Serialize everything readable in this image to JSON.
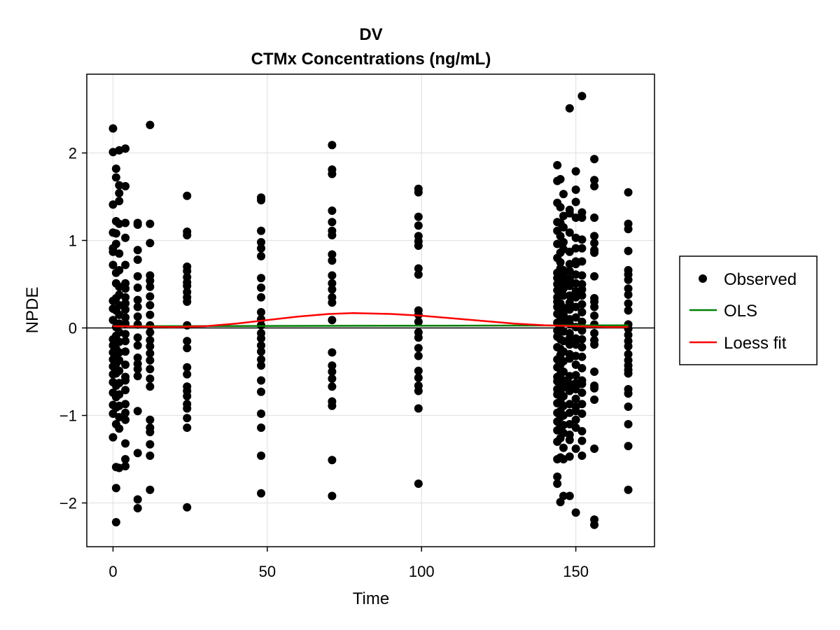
{
  "chart_data": {
    "type": "scatter",
    "title": "DV",
    "subtitle": "CTMx Concentrations (ng/mL)",
    "xlabel": "Time",
    "ylabel": "NPDE",
    "xlim": [
      -8.5,
      175.5
    ],
    "ylim": [
      -2.5,
      2.9
    ],
    "x_ticks": [
      0,
      50,
      100,
      150
    ],
    "y_ticks": [
      -2,
      -1,
      0,
      1,
      2
    ],
    "y_tick_labels": [
      "−2",
      "−1",
      "0",
      "1",
      "2"
    ],
    "grid": true,
    "legend_position": "right",
    "reference_line_y": 0,
    "colors": {
      "observed": "#000000",
      "ols": "#008000",
      "loess": "#ff0000"
    },
    "series": [
      {
        "name": "Observed",
        "kind": "points",
        "groups": [
          {
            "x": 0,
            "y": [
              2.28,
              2.01,
              1.41,
              1.09,
              0.91,
              0.87,
              0.72,
              0.31,
              0.22,
              0.09,
              -0.13,
              -0.2,
              -0.28,
              -0.36,
              -0.44,
              -0.53,
              -0.62,
              -0.74,
              -0.88,
              -0.98,
              -1.25
            ]
          },
          {
            "x": 1,
            "y": [
              1.82,
              1.72,
              1.22,
              1.08,
              0.96,
              0.63,
              0.51,
              0.34,
              0.2,
              0.01,
              -0.09,
              -0.24,
              -0.3,
              -0.41,
              -0.52,
              -0.66,
              -0.79,
              -0.91,
              -1.1,
              -1.59,
              -1.83,
              -2.22
            ]
          },
          {
            "x": 2,
            "y": [
              2.03,
              1.63,
              1.54,
              1.45,
              1.19,
              0.85,
              0.66,
              0.47,
              0.38,
              0.26,
              0.15,
              0.05,
              -0.05,
              -0.16,
              -0.28,
              -0.37,
              -0.49,
              -0.63,
              -0.76,
              -0.89,
              -1.02,
              -1.15,
              -1.6
            ]
          },
          {
            "x": 4,
            "y": [
              2.05,
              1.62,
              1.2,
              1.03,
              0.72,
              0.51,
              0.45,
              0.35,
              0.28,
              0.21,
              0.12,
              0.05,
              -0.07,
              -0.15,
              -0.27,
              -0.42,
              -0.56,
              -0.6,
              -0.71,
              -0.87,
              -0.97,
              -1.05,
              -1.32,
              -1.5,
              -1.58
            ]
          },
          {
            "x": 8,
            "y": [
              1.2,
              1.18,
              0.89,
              0.78,
              0.59,
              0.46,
              0.32,
              0.24,
              0.13,
              0.04,
              -0.11,
              -0.2,
              -0.34,
              -0.41,
              -0.47,
              -0.55,
              -0.95,
              -1.43,
              -1.96,
              -2.06
            ]
          },
          {
            "x": 12,
            "y": [
              2.32,
              1.19,
              0.97,
              0.6,
              0.54,
              0.47,
              0.36,
              0.26,
              0.15,
              0.03,
              -0.05,
              -0.14,
              -0.21,
              -0.29,
              -0.37,
              -0.47,
              -0.58,
              -0.67,
              -1.05,
              -1.14,
              -1.19,
              -1.33,
              -1.46,
              -1.85
            ]
          },
          {
            "x": 24,
            "y": [
              1.51,
              1.1,
              1.06,
              0.7,
              0.65,
              0.58,
              0.52,
              0.48,
              0.41,
              0.35,
              0.3,
              0.03,
              -0.15,
              -0.23,
              -0.45,
              -0.53,
              -0.67,
              -0.72,
              -0.78,
              -0.87,
              -0.92,
              -1.03,
              -1.14,
              -2.05
            ]
          },
          {
            "x": 48,
            "y": [
              1.49,
              1.46,
              1.11,
              0.98,
              0.91,
              0.82,
              0.57,
              0.46,
              0.35,
              0.18,
              0.1,
              0.03,
              -0.06,
              -0.12,
              -0.2,
              -0.27,
              -0.36,
              -0.43,
              -0.6,
              -0.73,
              -0.98,
              -1.14,
              -1.46,
              -1.89
            ]
          },
          {
            "x": 71,
            "y": [
              2.09,
              1.81,
              1.76,
              1.34,
              1.21,
              1.11,
              1.06,
              0.84,
              0.77,
              0.6,
              0.51,
              0.44,
              0.35,
              0.29,
              0.09,
              -0.28,
              -0.43,
              -0.5,
              -0.58,
              -0.67,
              -0.84,
              -0.89,
              -1.51,
              -1.92
            ]
          },
          {
            "x": 99,
            "y": [
              1.59,
              1.55,
              1.27,
              1.17,
              1.05,
              0.99,
              0.94,
              0.68,
              0.61,
              0.2,
              0.15,
              0.07,
              -0.05,
              -0.11,
              -0.23,
              -0.32,
              -0.49,
              -0.57,
              -0.66,
              -0.72,
              -0.92,
              -1.78
            ]
          },
          {
            "x": 144,
            "y": [
              1.86,
              1.68,
              1.43,
              1.21,
              1.11,
              0.96,
              0.8,
              0.63,
              0.57,
              0.5,
              0.43,
              0.35,
              0.3,
              0.24,
              0.16,
              0.06,
              -0.03,
              -0.1,
              -0.22,
              -0.36,
              -0.45,
              -0.56,
              -0.61,
              -0.7,
              -0.76,
              -0.86,
              -0.97,
              -1.07,
              -1.17,
              -1.3,
              -1.5,
              -1.7,
              -1.78
            ]
          },
          {
            "x": 145,
            "y": [
              1.7,
              1.38,
              1.2,
              1.05,
              0.86,
              0.75,
              0.68,
              0.58,
              0.48,
              0.41,
              0.28,
              0.2,
              0.13,
              0.02,
              -0.13,
              -0.24,
              -0.31,
              -0.42,
              -0.53,
              -0.64,
              -0.73,
              -0.84,
              -0.95,
              -1.02,
              -1.12,
              -1.26,
              -1.48,
              -1.99
            ]
          },
          {
            "x": 146,
            "y": [
              1.53,
              1.28,
              1.15,
              0.98,
              0.9,
              0.66,
              0.6,
              0.52,
              0.45,
              0.37,
              0.23,
              0.15,
              0.08,
              -0.04,
              -0.15,
              -0.27,
              -0.38,
              -0.5,
              -0.6,
              -0.68,
              -0.78,
              -0.89,
              -1.0,
              -1.11,
              -1.2,
              -1.37,
              -1.5,
              -1.92
            ]
          },
          {
            "x": 148,
            "y": [
              2.51,
              1.35,
              1.31,
              1.09,
              0.87,
              0.73,
              0.65,
              0.56,
              0.48,
              0.37,
              0.29,
              0.21,
              0.1,
              0.05,
              -0.06,
              -0.12,
              -0.19,
              -0.3,
              -0.35,
              -0.55,
              -0.64,
              -0.72,
              -0.87,
              -0.97,
              -1.1,
              -1.22,
              -1.28,
              -1.47,
              -1.92
            ]
          },
          {
            "x": 150,
            "y": [
              1.79,
              1.58,
              1.44,
              1.26,
              1.03,
              0.91,
              0.76,
              0.73,
              0.61,
              0.51,
              0.42,
              0.35,
              0.24,
              0.12,
              0.01,
              -0.12,
              -0.19,
              -0.32,
              -0.42,
              -0.54,
              -0.63,
              -0.7,
              -0.81,
              -0.9,
              -0.95,
              -1.05,
              -1.14,
              -1.38,
              -2.11
            ]
          },
          {
            "x": 152,
            "y": [
              2.65,
              1.32,
              1.26,
              1.01,
              0.91,
              0.76,
              0.6,
              0.5,
              0.44,
              0.37,
              0.27,
              0.18,
              0.07,
              -0.03,
              -0.13,
              -0.22,
              -0.33,
              -0.46,
              -0.6,
              -0.64,
              -0.74,
              -0.87,
              -0.98,
              -1.18,
              -1.29,
              -1.46
            ]
          },
          {
            "x": 156,
            "y": [
              1.93,
              1.69,
              1.62,
              1.26,
              1.05,
              0.97,
              0.89,
              0.86,
              0.59,
              0.34,
              0.3,
              0.24,
              0.14,
              0.04,
              -0.06,
              -0.14,
              -0.19,
              -0.5,
              -0.66,
              -0.69,
              -0.82,
              -1.38,
              -2.19,
              -2.25
            ]
          },
          {
            "x": 167,
            "y": [
              1.55,
              1.19,
              1.13,
              0.88,
              0.66,
              0.61,
              0.55,
              0.45,
              0.38,
              0.28,
              0.2,
              0.04,
              -0.01,
              -0.08,
              -0.15,
              -0.21,
              -0.3,
              -0.37,
              -0.43,
              -0.48,
              -0.52,
              -0.7,
              -0.75,
              -0.9,
              -1.1,
              -1.35,
              -1.85
            ]
          }
        ]
      },
      {
        "name": "OLS",
        "kind": "line",
        "x": [
          0,
          167
        ],
        "y": [
          0.02,
          0.03
        ]
      },
      {
        "name": "Loess fit",
        "kind": "line",
        "x": [
          0,
          10,
          20,
          30,
          40,
          50,
          60,
          70,
          78,
          90,
          100,
          110,
          120,
          130,
          140,
          150,
          160,
          167
        ],
        "y": [
          0.02,
          0.015,
          0.01,
          0.02,
          0.05,
          0.09,
          0.13,
          0.16,
          0.17,
          0.16,
          0.14,
          0.11,
          0.08,
          0.05,
          0.03,
          0.02,
          0.01,
          0.01
        ]
      }
    ]
  }
}
